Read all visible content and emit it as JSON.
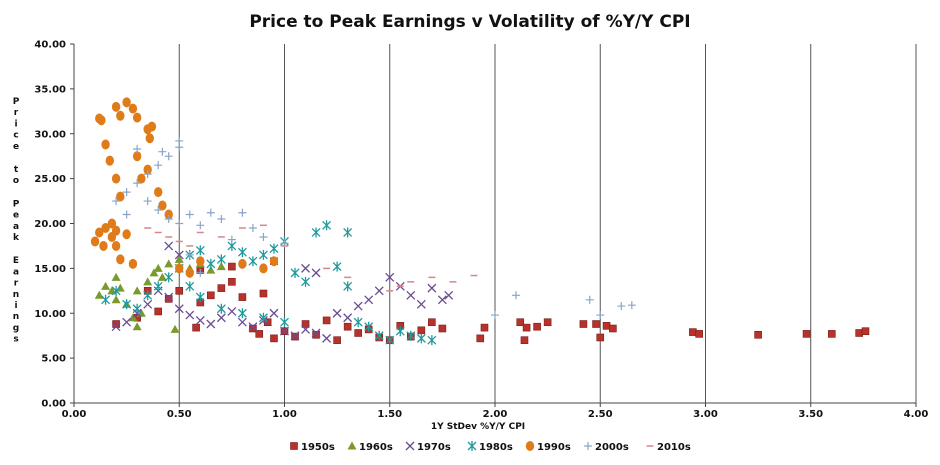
{
  "chart_data": {
    "type": "scatter",
    "title": "Price to Peak Earnings v Volatility of %Y/Y CPI",
    "xlabel": "1Y StDev %Y/Y CPI",
    "ylabel": "Price to Peak Earnings",
    "xlim": [
      0,
      4
    ],
    "ylim": [
      0,
      40
    ],
    "x_ticks": [
      "0.00",
      "0.50",
      "1.00",
      "1.50",
      "2.00",
      "2.50",
      "3.00",
      "3.50",
      "4.00"
    ],
    "y_ticks": [
      "0.00",
      "5.00",
      "10.00",
      "15.00",
      "20.00",
      "25.00",
      "30.00",
      "35.00",
      "40.00"
    ],
    "grid": "vertical",
    "legend_position": "bottom",
    "series": [
      {
        "name": "1950s",
        "marker": "square",
        "color": "#b8312b",
        "points": [
          [
            0.2,
            8.8
          ],
          [
            0.3,
            9.5
          ],
          [
            0.4,
            10.2
          ],
          [
            0.45,
            11.6
          ],
          [
            0.5,
            12.5
          ],
          [
            0.58,
            8.4
          ],
          [
            0.6,
            11.2
          ],
          [
            0.65,
            12.0
          ],
          [
            0.7,
            12.8
          ],
          [
            0.75,
            13.5
          ],
          [
            0.8,
            11.8
          ],
          [
            0.85,
            8.3
          ],
          [
            0.88,
            7.7
          ],
          [
            0.92,
            9.0
          ],
          [
            0.95,
            7.2
          ],
          [
            1.0,
            8.0
          ],
          [
            1.05,
            7.4
          ],
          [
            1.1,
            8.8
          ],
          [
            1.15,
            7.6
          ],
          [
            1.2,
            9.2
          ],
          [
            1.25,
            7.0
          ],
          [
            1.3,
            8.5
          ],
          [
            1.35,
            7.8
          ],
          [
            1.4,
            8.2
          ],
          [
            1.45,
            7.3
          ],
          [
            1.5,
            7.0
          ],
          [
            1.55,
            8.6
          ],
          [
            1.6,
            7.4
          ],
          [
            1.65,
            8.1
          ],
          [
            1.7,
            9.0
          ],
          [
            1.75,
            8.3
          ],
          [
            1.93,
            7.2
          ],
          [
            1.95,
            8.4
          ],
          [
            2.12,
            9.0
          ],
          [
            2.14,
            7.0
          ],
          [
            2.15,
            8.4
          ],
          [
            2.2,
            8.5
          ],
          [
            2.25,
            9.0
          ],
          [
            2.42,
            8.8
          ],
          [
            2.48,
            8.8
          ],
          [
            2.5,
            7.3
          ],
          [
            2.53,
            8.6
          ],
          [
            2.56,
            8.3
          ],
          [
            2.94,
            7.9
          ],
          [
            2.97,
            7.7
          ],
          [
            3.25,
            7.6
          ],
          [
            3.48,
            7.7
          ],
          [
            3.6,
            7.7
          ],
          [
            3.73,
            7.8
          ],
          [
            3.76,
            8.0
          ],
          [
            0.95,
            15.8
          ],
          [
            0.9,
            12.2
          ],
          [
            0.35,
            12.5
          ],
          [
            0.6,
            14.8
          ],
          [
            0.75,
            15.2
          ]
        ]
      },
      {
        "name": "1960s",
        "marker": "triangle",
        "color": "#7a9a2e",
        "points": [
          [
            0.12,
            12.0
          ],
          [
            0.15,
            13.0
          ],
          [
            0.18,
            12.5
          ],
          [
            0.2,
            11.5
          ],
          [
            0.22,
            12.8
          ],
          [
            0.25,
            11.0
          ],
          [
            0.28,
            9.5
          ],
          [
            0.3,
            8.5
          ],
          [
            0.32,
            10.0
          ],
          [
            0.35,
            13.5
          ],
          [
            0.38,
            14.5
          ],
          [
            0.4,
            15.0
          ],
          [
            0.42,
            14.0
          ],
          [
            0.45,
            15.5
          ],
          [
            0.5,
            16.0
          ],
          [
            0.55,
            15.0
          ],
          [
            0.6,
            15.5
          ],
          [
            0.65,
            14.8
          ],
          [
            0.7,
            15.2
          ],
          [
            0.48,
            8.2
          ],
          [
            0.2,
            14.0
          ],
          [
            0.3,
            12.5
          ]
        ]
      },
      {
        "name": "1970s",
        "marker": "x",
        "color": "#6a4c93",
        "points": [
          [
            0.2,
            8.5
          ],
          [
            0.25,
            9.0
          ],
          [
            0.3,
            10.0
          ],
          [
            0.35,
            11.0
          ],
          [
            0.4,
            12.5
          ],
          [
            0.45,
            11.8
          ],
          [
            0.5,
            10.5
          ],
          [
            0.55,
            9.8
          ],
          [
            0.6,
            9.2
          ],
          [
            0.65,
            8.8
          ],
          [
            0.7,
            9.5
          ],
          [
            0.75,
            10.2
          ],
          [
            0.8,
            9.0
          ],
          [
            0.85,
            8.5
          ],
          [
            0.9,
            9.2
          ],
          [
            0.95,
            10.0
          ],
          [
            1.0,
            8.0
          ],
          [
            1.05,
            7.5
          ],
          [
            1.1,
            8.2
          ],
          [
            1.15,
            7.8
          ],
          [
            1.2,
            7.2
          ],
          [
            1.25,
            10.0
          ],
          [
            1.3,
            9.5
          ],
          [
            1.35,
            10.8
          ],
          [
            1.4,
            11.5
          ],
          [
            1.45,
            12.5
          ],
          [
            1.5,
            14.0
          ],
          [
            1.55,
            13.0
          ],
          [
            1.6,
            12.0
          ],
          [
            1.65,
            11.0
          ],
          [
            1.7,
            12.8
          ],
          [
            1.75,
            11.5
          ],
          [
            1.78,
            12.0
          ],
          [
            1.1,
            15.0
          ],
          [
            1.15,
            14.5
          ],
          [
            0.45,
            17.5
          ],
          [
            0.5,
            16.5
          ]
        ]
      },
      {
        "name": "1980s",
        "marker": "asterisk",
        "color": "#1f9a9e",
        "points": [
          [
            0.15,
            11.5
          ],
          [
            0.2,
            12.5
          ],
          [
            0.25,
            11.0
          ],
          [
            0.3,
            10.5
          ],
          [
            0.35,
            12.0
          ],
          [
            0.4,
            13.0
          ],
          [
            0.45,
            14.0
          ],
          [
            0.5,
            15.0
          ],
          [
            0.55,
            16.5
          ],
          [
            0.6,
            17.0
          ],
          [
            0.65,
            15.5
          ],
          [
            0.7,
            16.0
          ],
          [
            0.75,
            17.5
          ],
          [
            0.8,
            16.8
          ],
          [
            0.85,
            15.8
          ],
          [
            0.9,
            16.5
          ],
          [
            0.95,
            17.2
          ],
          [
            1.0,
            18.0
          ],
          [
            1.05,
            14.5
          ],
          [
            1.1,
            13.5
          ],
          [
            1.15,
            19.0
          ],
          [
            1.2,
            19.8
          ],
          [
            1.25,
            15.2
          ],
          [
            1.3,
            13.0
          ],
          [
            1.35,
            9.0
          ],
          [
            1.4,
            8.5
          ],
          [
            1.45,
            7.5
          ],
          [
            1.5,
            7.0
          ],
          [
            1.55,
            8.0
          ],
          [
            1.6,
            7.5
          ],
          [
            1.65,
            7.2
          ],
          [
            1.7,
            7.0
          ],
          [
            0.55,
            13.0
          ],
          [
            0.6,
            11.8
          ],
          [
            0.7,
            10.5
          ],
          [
            0.8,
            10.0
          ],
          [
            0.9,
            9.5
          ],
          [
            1.0,
            9.0
          ],
          [
            1.3,
            19.0
          ]
        ]
      },
      {
        "name": "1990s",
        "marker": "circle",
        "color": "#e07b1a",
        "points": [
          [
            0.12,
            31.7
          ],
          [
            0.13,
            31.5
          ],
          [
            0.15,
            28.8
          ],
          [
            0.17,
            27.0
          ],
          [
            0.2,
            33.0
          ],
          [
            0.22,
            32.0
          ],
          [
            0.25,
            33.5
          ],
          [
            0.28,
            32.8
          ],
          [
            0.3,
            31.8
          ],
          [
            0.35,
            30.5
          ],
          [
            0.36,
            29.5
          ],
          [
            0.37,
            30.8
          ],
          [
            0.3,
            27.5
          ],
          [
            0.35,
            26.0
          ],
          [
            0.32,
            25.0
          ],
          [
            0.2,
            25.0
          ],
          [
            0.22,
            23.0
          ],
          [
            0.4,
            23.5
          ],
          [
            0.42,
            22.0
          ],
          [
            0.45,
            21.0
          ],
          [
            0.1,
            18.0
          ],
          [
            0.12,
            19.0
          ],
          [
            0.14,
            17.5
          ],
          [
            0.15,
            19.5
          ],
          [
            0.18,
            18.5
          ],
          [
            0.2,
            17.5
          ],
          [
            0.22,
            16.0
          ],
          [
            0.25,
            18.8
          ],
          [
            0.28,
            15.5
          ],
          [
            0.5,
            15.0
          ],
          [
            0.55,
            14.5
          ],
          [
            0.6,
            15.8
          ],
          [
            0.8,
            15.5
          ],
          [
            0.9,
            15.0
          ],
          [
            0.95,
            15.8
          ],
          [
            0.18,
            20.0
          ],
          [
            0.2,
            19.2
          ]
        ]
      },
      {
        "name": "2000s",
        "marker": "plus",
        "color": "#8aa4c8",
        "points": [
          [
            0.2,
            22.5
          ],
          [
            0.25,
            23.5
          ],
          [
            0.3,
            24.5
          ],
          [
            0.35,
            25.5
          ],
          [
            0.4,
            26.5
          ],
          [
            0.45,
            27.5
          ],
          [
            0.5,
            28.5
          ],
          [
            0.5,
            29.2
          ],
          [
            0.42,
            28.0
          ],
          [
            0.3,
            28.3
          ],
          [
            0.25,
            21.0
          ],
          [
            0.35,
            22.5
          ],
          [
            0.4,
            21.5
          ],
          [
            0.45,
            20.5
          ],
          [
            0.5,
            20.0
          ],
          [
            0.55,
            21.0
          ],
          [
            0.6,
            19.8
          ],
          [
            0.65,
            21.2
          ],
          [
            0.7,
            20.5
          ],
          [
            0.8,
            21.2
          ],
          [
            0.85,
            19.5
          ],
          [
            0.9,
            18.5
          ],
          [
            1.0,
            17.8
          ],
          [
            0.75,
            18.2
          ],
          [
            0.55,
            16.5
          ],
          [
            0.6,
            14.5
          ],
          [
            2.0,
            9.8
          ],
          [
            2.1,
            12.0
          ],
          [
            2.45,
            11.5
          ],
          [
            2.5,
            9.8
          ],
          [
            2.6,
            10.8
          ],
          [
            2.65,
            10.9
          ]
        ]
      },
      {
        "name": "2010s",
        "marker": "dash",
        "color": "#d9868a",
        "points": [
          [
            0.35,
            19.5
          ],
          [
            0.4,
            19.0
          ],
          [
            0.45,
            18.5
          ],
          [
            0.5,
            18.0
          ],
          [
            0.55,
            17.5
          ],
          [
            0.6,
            19.0
          ],
          [
            0.7,
            18.5
          ],
          [
            0.8,
            19.5
          ],
          [
            0.9,
            19.8
          ],
          [
            1.0,
            17.5
          ],
          [
            1.2,
            15.0
          ],
          [
            1.3,
            14.0
          ],
          [
            1.6,
            13.5
          ],
          [
            1.7,
            14.0
          ],
          [
            1.8,
            13.5
          ],
          [
            1.9,
            14.2
          ],
          [
            1.5,
            12.5
          ],
          [
            1.55,
            13.0
          ]
        ]
      }
    ]
  }
}
